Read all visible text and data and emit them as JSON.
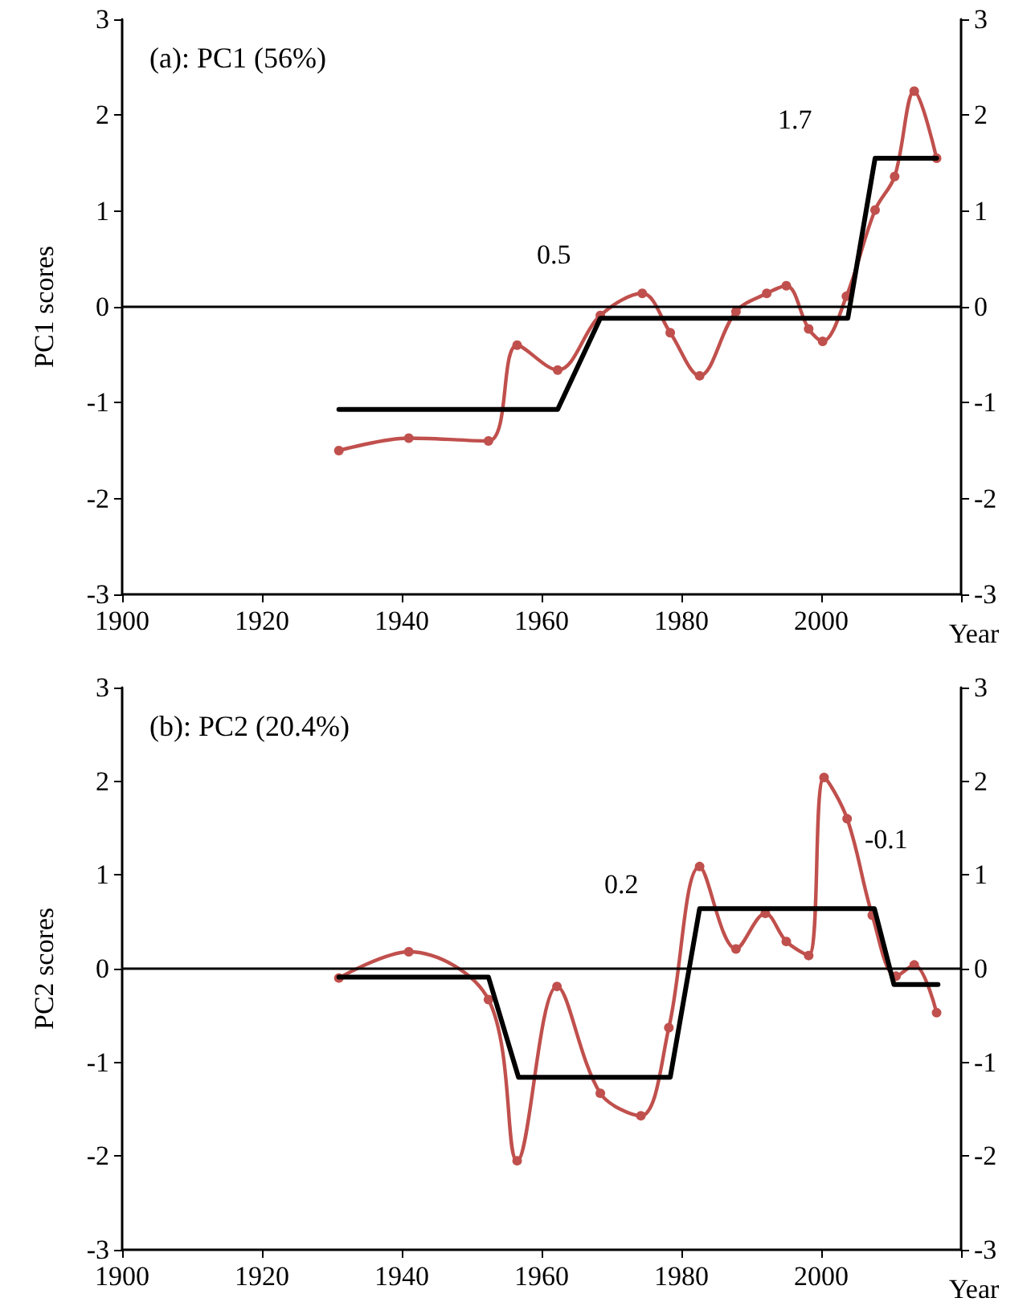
{
  "chart_data": [
    {
      "type": "line",
      "title": "(a): PC1 (56%)",
      "ylabel": "PC1 scores",
      "xlabel": "Year",
      "xlim": [
        1900,
        2020
      ],
      "xticks": [
        1900,
        1920,
        1940,
        1960,
        1980,
        2000,
        {
          "value": 2020,
          "label": null
        }
      ],
      "ylim": [
        -3,
        3
      ],
      "yticks": [
        -3,
        -2,
        -1,
        0,
        1,
        2,
        3
      ],
      "y2lim": [
        -3,
        3
      ],
      "y2ticks": [
        -3,
        -2,
        -1,
        0,
        1,
        2,
        3
      ],
      "grid": false,
      "line_style": "solid",
      "series": [
        {
          "color": "#c0504d",
          "marker": "circle",
          "x": [
            1931,
            1941,
            1952.4,
            1956.5,
            1962.3,
            1968.4,
            1974.4,
            1978.4,
            1982.6,
            1987.8,
            1992.2,
            1995,
            1998.2,
            2000.2,
            2003.6,
            2007.7,
            2010.5,
            2013.3,
            2016.5
          ],
          "values": [
            -1.5,
            -1.37,
            -1.4,
            -0.4,
            -0.66,
            -0.09,
            0.14,
            -0.27,
            -0.72,
            -0.05,
            0.14,
            0.22,
            -0.23,
            -0.36,
            0.11,
            1.01,
            1.36,
            2.25,
            1.55
          ]
        },
        {
          "color": "#000000",
          "marker": "none",
          "x": [
            1931,
            1962.3,
            1968.4,
            2003.8,
            2007.7,
            2016.5
          ],
          "values": [
            -1.07,
            -1.07,
            -0.12,
            -0.12,
            1.55,
            1.55
          ]
        }
      ],
      "ref_lines": [
        {
          "axis": "y",
          "value": 0,
          "color": "#000000"
        }
      ],
      "annotations": [
        "0.5",
        "1.7"
      ]
    },
    {
      "type": "line",
      "title": "(b): PC2 (20.4%)",
      "ylabel": "PC2 scores",
      "xlabel": "Year",
      "xlim": [
        1900,
        2020
      ],
      "xticks": [
        1900,
        1920,
        1940,
        1960,
        1980,
        2000,
        {
          "value": 2020,
          "label": null
        }
      ],
      "ylim": [
        -3,
        3
      ],
      "yticks": [
        -3,
        -2,
        -1,
        0,
        1,
        2,
        3
      ],
      "y2lim": [
        -3,
        3
      ],
      "y2ticks": [
        -3,
        -2,
        -1,
        0,
        1,
        2,
        3
      ],
      "grid": false,
      "line_style": "solid",
      "series": [
        {
          "color": "#c0504d",
          "marker": "circle",
          "x": [
            1931,
            1941,
            1952.4,
            1956.5,
            1962.2,
            1968.4,
            1974.2,
            1978.2,
            1982.6,
            1987.8,
            1992,
            1995,
            1998.2,
            2000.4,
            2003.7,
            2007.3,
            2010.7,
            2013.3,
            2016.5
          ],
          "values": [
            -0.1,
            0.18,
            -0.33,
            -2.05,
            -0.19,
            -1.33,
            -1.57,
            -0.63,
            1.09,
            0.21,
            0.59,
            0.29,
            0.14,
            2.04,
            1.6,
            0.57,
            -0.08,
            0.04,
            -0.47
          ]
        },
        {
          "color": "#000000",
          "marker": "none",
          "x": [
            1931,
            1952.4,
            1956.7,
            1978.4,
            1982.6,
            2007.6,
            2010.4,
            2016.7
          ],
          "values": [
            -0.09,
            -0.09,
            -1.16,
            -1.16,
            0.64,
            0.64,
            -0.17,
            -0.17
          ]
        }
      ],
      "ref_lines": [
        {
          "axis": "y",
          "value": 0,
          "color": "#000000"
        }
      ],
      "annotations": [
        "0.2",
        "-0.1"
      ]
    }
  ]
}
